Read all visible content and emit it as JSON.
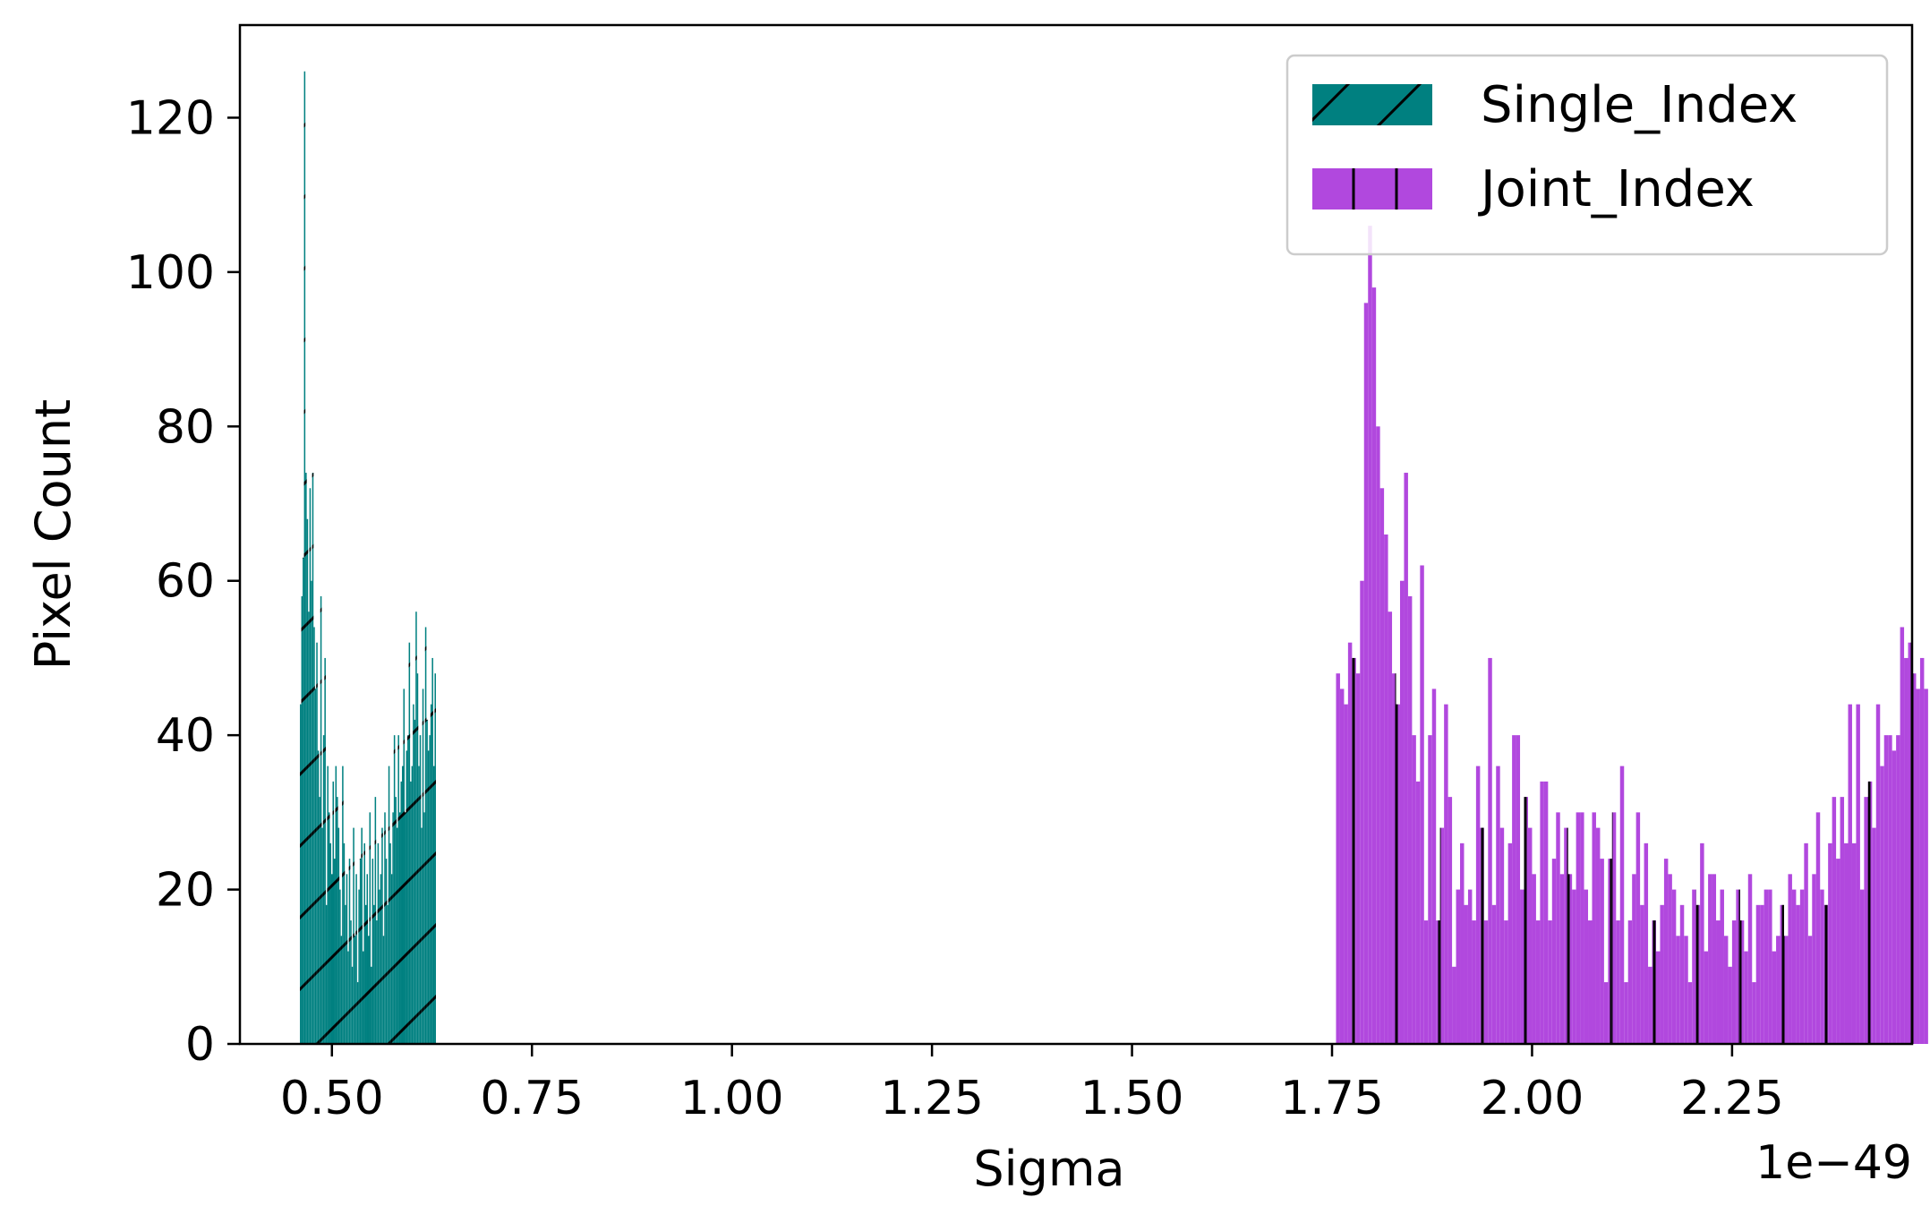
{
  "chart_data": {
    "type": "histogram",
    "xlabel": "Sigma",
    "ylabel": "Pixel Count",
    "x_offset_label": "1e−49",
    "xlim": [
      0.385,
      2.475
    ],
    "ylim": [
      0,
      132
    ],
    "x_ticks": [
      0.5,
      0.75,
      1.0,
      1.25,
      1.5,
      1.75,
      2.0,
      2.25
    ],
    "x_tick_labels": [
      "0.50",
      "0.75",
      "1.00",
      "1.25",
      "1.50",
      "1.75",
      "2.00",
      "2.25"
    ],
    "y_ticks": [
      0,
      20,
      40,
      60,
      80,
      100,
      120
    ],
    "y_tick_labels": [
      "0",
      "20",
      "40",
      "60",
      "80",
      "100",
      "120"
    ],
    "grid": false,
    "legend_position": "top-right",
    "series": [
      {
        "name": "Single_Index",
        "color": "#008080",
        "hatch": "diagonal",
        "bin_start": 0.46,
        "bin_width": 0.0017,
        "counts": [
          44,
          58,
          63,
          126,
          74,
          68,
          56,
          72,
          60,
          74,
          54,
          46,
          52,
          38,
          32,
          58,
          28,
          40,
          50,
          18,
          36,
          30,
          26,
          22,
          34,
          24,
          36,
          32,
          28,
          20,
          14,
          36,
          26,
          18,
          22,
          12,
          24,
          16,
          10,
          28,
          14,
          22,
          8,
          20,
          24,
          28,
          12,
          26,
          18,
          22,
          14,
          30,
          10,
          24,
          18,
          32,
          16,
          26,
          20,
          22,
          28,
          14,
          30,
          24,
          18,
          36,
          26,
          22,
          30,
          40,
          32,
          28,
          40,
          30,
          34,
          36,
          46,
          30,
          38,
          40,
          52,
          34,
          36,
          44,
          42,
          56,
          48,
          36,
          40,
          28,
          46,
          30,
          54,
          42,
          38,
          40,
          44,
          50,
          36,
          48
        ]
      },
      {
        "name": "Joint_Index",
        "color": "#b148de",
        "hatch": "vertical",
        "bin_start": 1.755,
        "bin_width": 0.005,
        "counts": [
          48,
          46,
          44,
          52,
          50,
          48,
          60,
          96,
          106,
          98,
          80,
          72,
          66,
          56,
          48,
          44,
          60,
          74,
          58,
          40,
          34,
          62,
          16,
          40,
          46,
          16,
          28,
          44,
          32,
          10,
          20,
          26,
          18,
          20,
          16,
          36,
          28,
          16,
          50,
          18,
          36,
          28,
          16,
          26,
          40,
          40,
          20,
          32,
          28,
          22,
          16,
          34,
          34,
          16,
          24,
          30,
          22,
          28,
          22,
          20,
          30,
          30,
          20,
          16,
          30,
          28,
          24,
          8,
          24,
          30,
          16,
          36,
          8,
          16,
          22,
          30,
          18,
          26,
          10,
          16,
          12,
          18,
          24,
          22,
          20,
          14,
          18,
          14,
          8,
          20,
          18,
          26,
          12,
          22,
          22,
          16,
          20,
          14,
          10,
          16,
          20,
          16,
          12,
          22,
          8,
          18,
          18,
          20,
          20,
          12,
          14,
          18,
          14,
          22,
          20,
          18,
          20,
          26,
          14,
          22,
          30,
          20,
          18,
          26,
          32,
          24,
          32,
          26,
          44,
          26,
          44,
          20,
          32,
          34,
          28,
          44,
          36,
          40,
          40,
          38,
          40,
          54,
          50,
          52,
          48,
          46,
          50,
          46
        ]
      }
    ]
  }
}
